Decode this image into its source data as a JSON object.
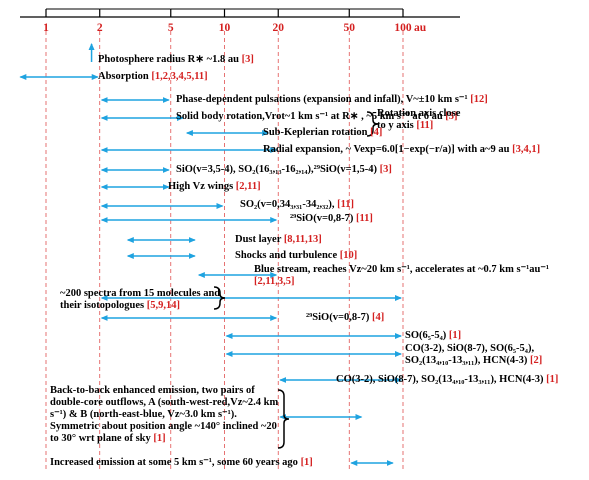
{
  "axis": {
    "ticks": [
      "1",
      "2",
      "5",
      "10",
      "20",
      "50",
      "100"
    ],
    "unit": "au",
    "scale": "log",
    "range": [
      1,
      100
    ],
    "tick_color": "#d42020",
    "guide_line_color": "#e05050"
  },
  "colors": {
    "arrow": "#1fa3e0",
    "reference": "#d42020",
    "text": "#000000"
  },
  "rows": [
    {
      "text": "Photosphere radius R∗ ~1.8 au ",
      "ref": "[3]",
      "span": [
        1.8,
        1.8
      ]
    },
    {
      "text": "Absorption ",
      "ref": "[1,2,3,4,5,11]",
      "span": [
        0.7,
        2
      ]
    },
    {
      "text": "Phase-dependent pulsations (expansion and infall), V~±10 km s⁻¹ ",
      "ref": "[12]",
      "span": [
        2,
        5
      ]
    },
    {
      "text": "Solid body rotation,Vrot~1 km s⁻¹ at R∗ , ~5 km s⁻¹ at 6 au ",
      "ref": "[3]",
      "span": [
        2,
        6
      ]
    },
    {
      "text": "Sub-Keplerian rotation ",
      "ref": "[4]",
      "span": [
        6,
        18
      ]
    },
    {
      "text": "Rotation axis close to y axis ",
      "ref": "[11]",
      "span": null
    },
    {
      "text": "Radial expansion, ~ Vexp=6.0[1−exp(−r/a)]  with a~9 au ",
      "ref": "[3,4,1]",
      "span": [
        2,
        20
      ]
    },
    {
      "text": "SiO(v=3,5-4), SO₂(16₃,₁₃-16₂,₁₄),²⁹SiO(v=1,5-4) ",
      "ref": "[3]",
      "span": [
        2,
        5
      ]
    },
    {
      "text": "High Vz wings ",
      "ref": "[2,11]",
      "span": [
        2,
        5
      ]
    },
    {
      "text": "SO₂(v=0,34₃,₃₁-34₂,₃₂), ",
      "ref": "[11]",
      "span": [
        2,
        10
      ]
    },
    {
      "text": "²⁹SiO(v=0,8-7) ",
      "ref": "[11]",
      "span": [
        2,
        20
      ]
    },
    {
      "text": "Dust layer ",
      "ref": "[8,11,13]",
      "span": [
        2.8,
        7
      ]
    },
    {
      "text": "Shocks and turbulence ",
      "ref": "[10]",
      "span": [
        2.8,
        7
      ]
    },
    {
      "text": "Blue stream, reaches Vz~20 km s⁻¹, accelerates at ~0.7 km s⁻¹au⁻¹ ",
      "ref": "[2,11,3,5]",
      "span": [
        7,
        20
      ]
    },
    {
      "text": "~200 spectra from 15 molecules and their isotopologues ",
      "ref": "[5,9,14]",
      "span": [
        2,
        100
      ]
    },
    {
      "text": "²⁹SiO(v=0,8-7) ",
      "ref": "[4]",
      "span": [
        2,
        20
      ]
    },
    {
      "text": "SO(6₅-5₄) ",
      "ref": "[1]",
      "span": [
        10,
        100
      ]
    },
    {
      "text": "CO(3-2), SiO(8-7), SO(6₅-5₄), SO₂(13₄,₁₀-13₃,₁₁), HCN(4-3) ",
      "ref": "[2]",
      "span": [
        10,
        100
      ]
    },
    {
      "text": "CO(3-2), SiO(8-7), SO₂(13₄,₁₀-13₃,₁₁), HCN(4-3) ",
      "ref": "[1]",
      "span": [
        20,
        100
      ]
    },
    {
      "text": "Back-to-back enhanced emission, two pairs of double-core outflows, A (south-west-red,Vz~2.4 km s⁻¹) & B (north-east-blue, Vz~3.0 km s⁻¹). Symmetric about position angle ~140° inclined ~20 to 30° wrt plane of sky ",
      "ref": "[1]",
      "span": [
        20,
        60
      ]
    },
    {
      "text": "Increased emission at some 5 km s⁻¹, some 60 years ago ",
      "ref": "[1]",
      "span": [
        50,
        90
      ]
    }
  ]
}
